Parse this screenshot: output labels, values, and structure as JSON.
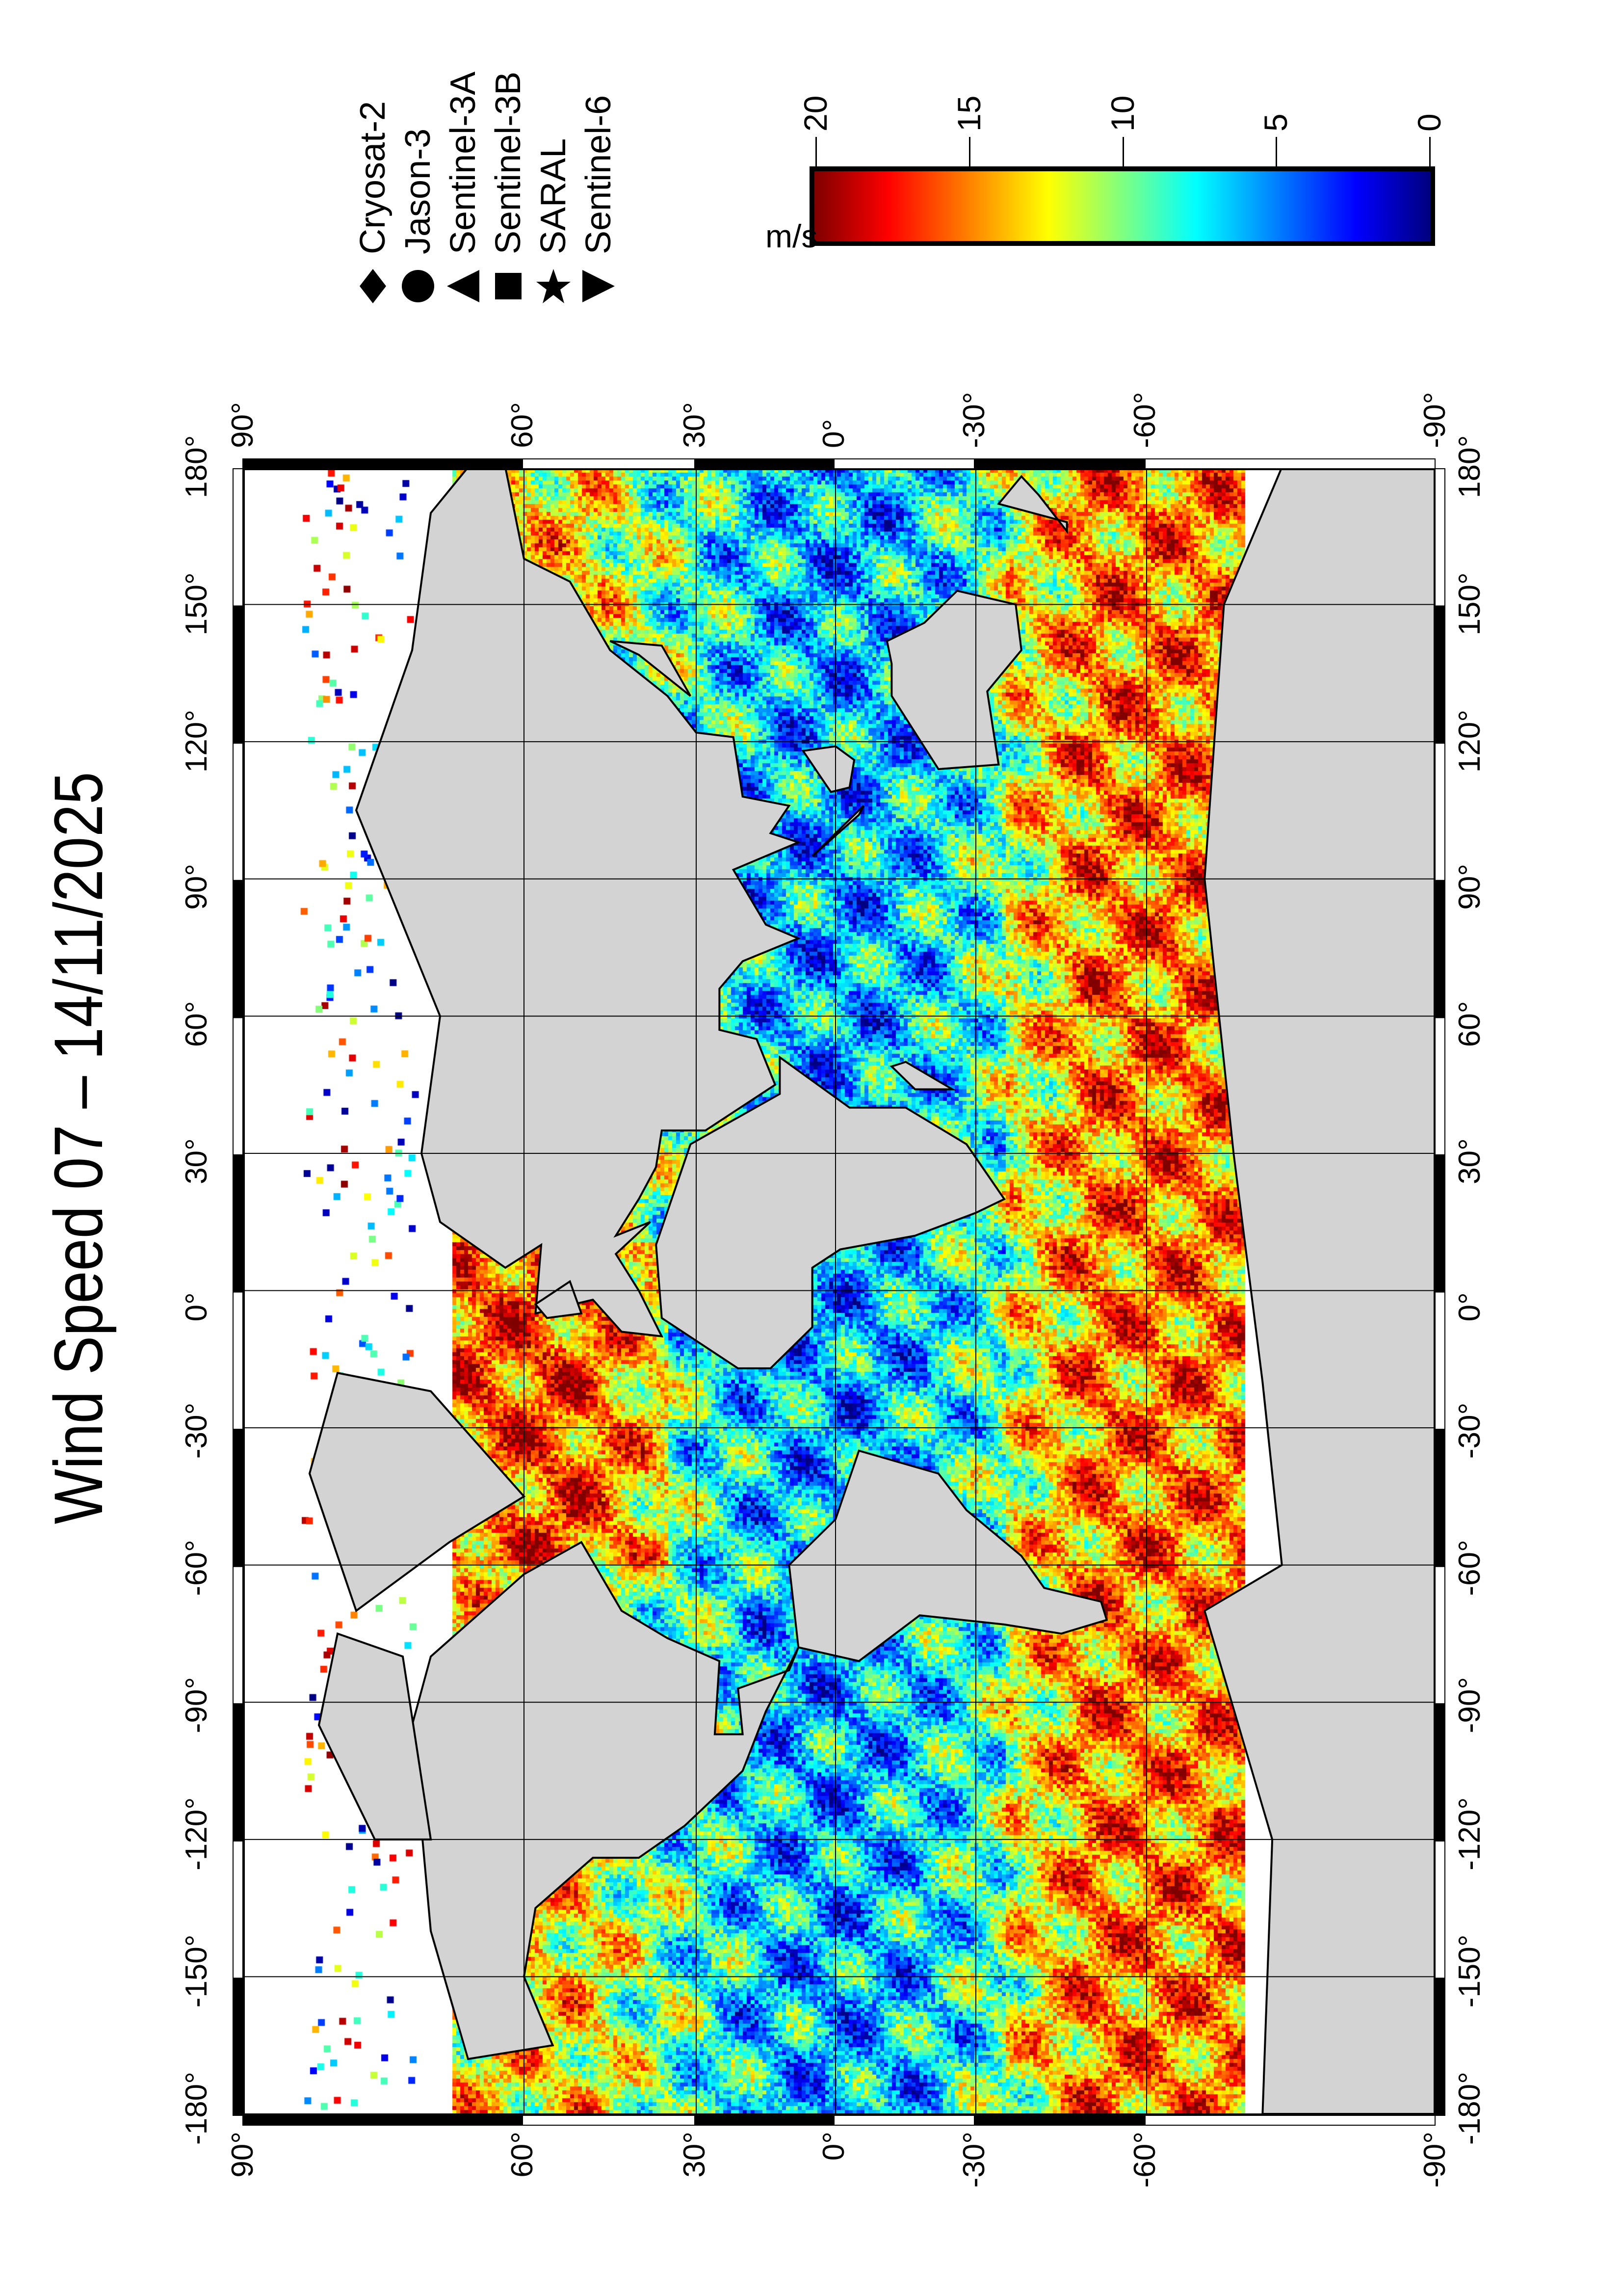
{
  "title": "Wind Speed 07 – 14/11/2025",
  "map": {
    "lon_ticks": [
      "-180°",
      "-150°",
      "-120°",
      "-90°",
      "-60°",
      "-30°",
      "0°",
      "30°",
      "60°",
      "90°",
      "120°",
      "150°",
      "180°"
    ],
    "lat_ticks": [
      "90°",
      "60°",
      "30°",
      "0°",
      "-30°",
      "-60°",
      "-90°"
    ],
    "land_color": "#d3d3d3",
    "no_data_color": "#ffffff",
    "grid": true
  },
  "legend": {
    "entries": [
      {
        "label": "Cryosat-2",
        "symbol": "diamond"
      },
      {
        "label": "Jason-3",
        "symbol": "circle"
      },
      {
        "label": "Sentinel-3A",
        "symbol": "triangle-left"
      },
      {
        "label": "Sentinel-3B",
        "symbol": "square"
      },
      {
        "label": "SARAL",
        "symbol": "star"
      },
      {
        "label": "Sentinel-6",
        "symbol": "triangle-right"
      }
    ]
  },
  "colorbar": {
    "label": "m/s",
    "range": [
      0,
      20
    ],
    "ticks": [
      "20",
      "15",
      "10",
      "5",
      "0"
    ],
    "colormap": "jet",
    "colors": [
      "#7f0000",
      "#ff0000",
      "#ff8000",
      "#ffff00",
      "#80ff80",
      "#00ffff",
      "#0080ff",
      "#0000ff",
      "#00007f"
    ]
  }
}
